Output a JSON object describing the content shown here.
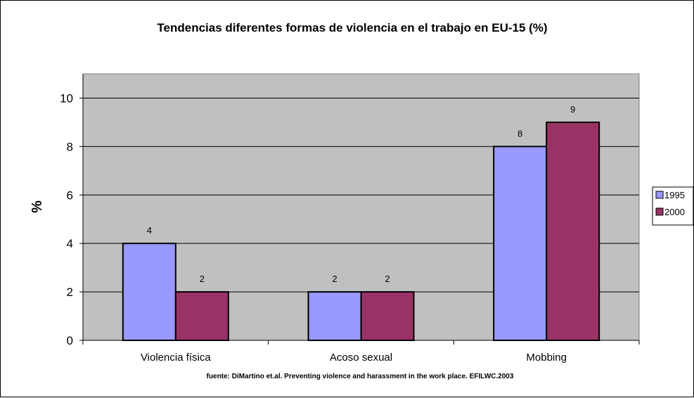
{
  "chart_data": {
    "type": "bar",
    "title": "Tendencias diferentes formas de violencia en el trabajo en EU-15 (%)",
    "xlabel": "",
    "ylabel": "%",
    "source_note": "fuente: DiMartino et.al. Preventing violence and harassment in the work place. EFILWC.2003",
    "categories": [
      "Violencia física",
      "Acoso sexual",
      "Mobbing"
    ],
    "series": [
      {
        "name": "1995",
        "values": [
          4,
          2,
          8
        ],
        "color": "#9999ff"
      },
      {
        "name": "2000",
        "values": [
          2,
          2,
          9
        ],
        "color": "#993366"
      }
    ],
    "ylim": [
      0,
      11
    ],
    "yticks": [
      0,
      2,
      4,
      6,
      8,
      10
    ],
    "grid": true,
    "legend_position": "right",
    "plot_background": "#c0c0c0"
  }
}
